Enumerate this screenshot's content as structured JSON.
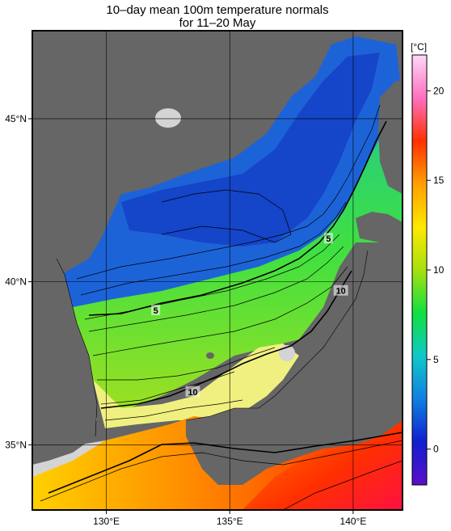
{
  "title": {
    "line1": "10–day mean 100m temperature normals",
    "line2": "for 11–20 May"
  },
  "map": {
    "lon_range": [
      127,
      142
    ],
    "lat_range": [
      33,
      47.7
    ],
    "x_ticks": [
      {
        "value": 130,
        "label": "130°E"
      },
      {
        "value": 135,
        "label": "135°E"
      },
      {
        "value": 140,
        "label": "140°E"
      }
    ],
    "y_ticks": [
      {
        "value": 45,
        "label": "45°N"
      },
      {
        "value": 40,
        "label": "40°N"
      },
      {
        "value": 35,
        "label": "35°N"
      }
    ],
    "contour_labels": [
      {
        "text": "5",
        "lon": 139.0,
        "lat": 41.3
      },
      {
        "text": "5",
        "lon": 132.0,
        "lat": 39.1
      },
      {
        "text": "10",
        "lon": 139.5,
        "lat": 39.7
      },
      {
        "text": "10",
        "lon": 133.5,
        "lat": 36.6
      }
    ],
    "land_color": "#666666",
    "no_data_color": "#d4d4d4"
  },
  "colorbar": {
    "unit": "[°C]",
    "range": [
      -2,
      22
    ],
    "ticks": [
      {
        "value": 0,
        "label": "0"
      },
      {
        "value": 5,
        "label": "5"
      },
      {
        "value": 10,
        "label": "10"
      },
      {
        "value": 15,
        "label": "15"
      },
      {
        "value": 20,
        "label": "20"
      }
    ],
    "stops": [
      "#5a10c8",
      "#1020d0",
      "#1080e0",
      "#10c8c8",
      "#10e040",
      "#a8e010",
      "#ffe800",
      "#ffa000",
      "#ff3000",
      "#ff70c0",
      "#ffd8f8"
    ]
  }
}
